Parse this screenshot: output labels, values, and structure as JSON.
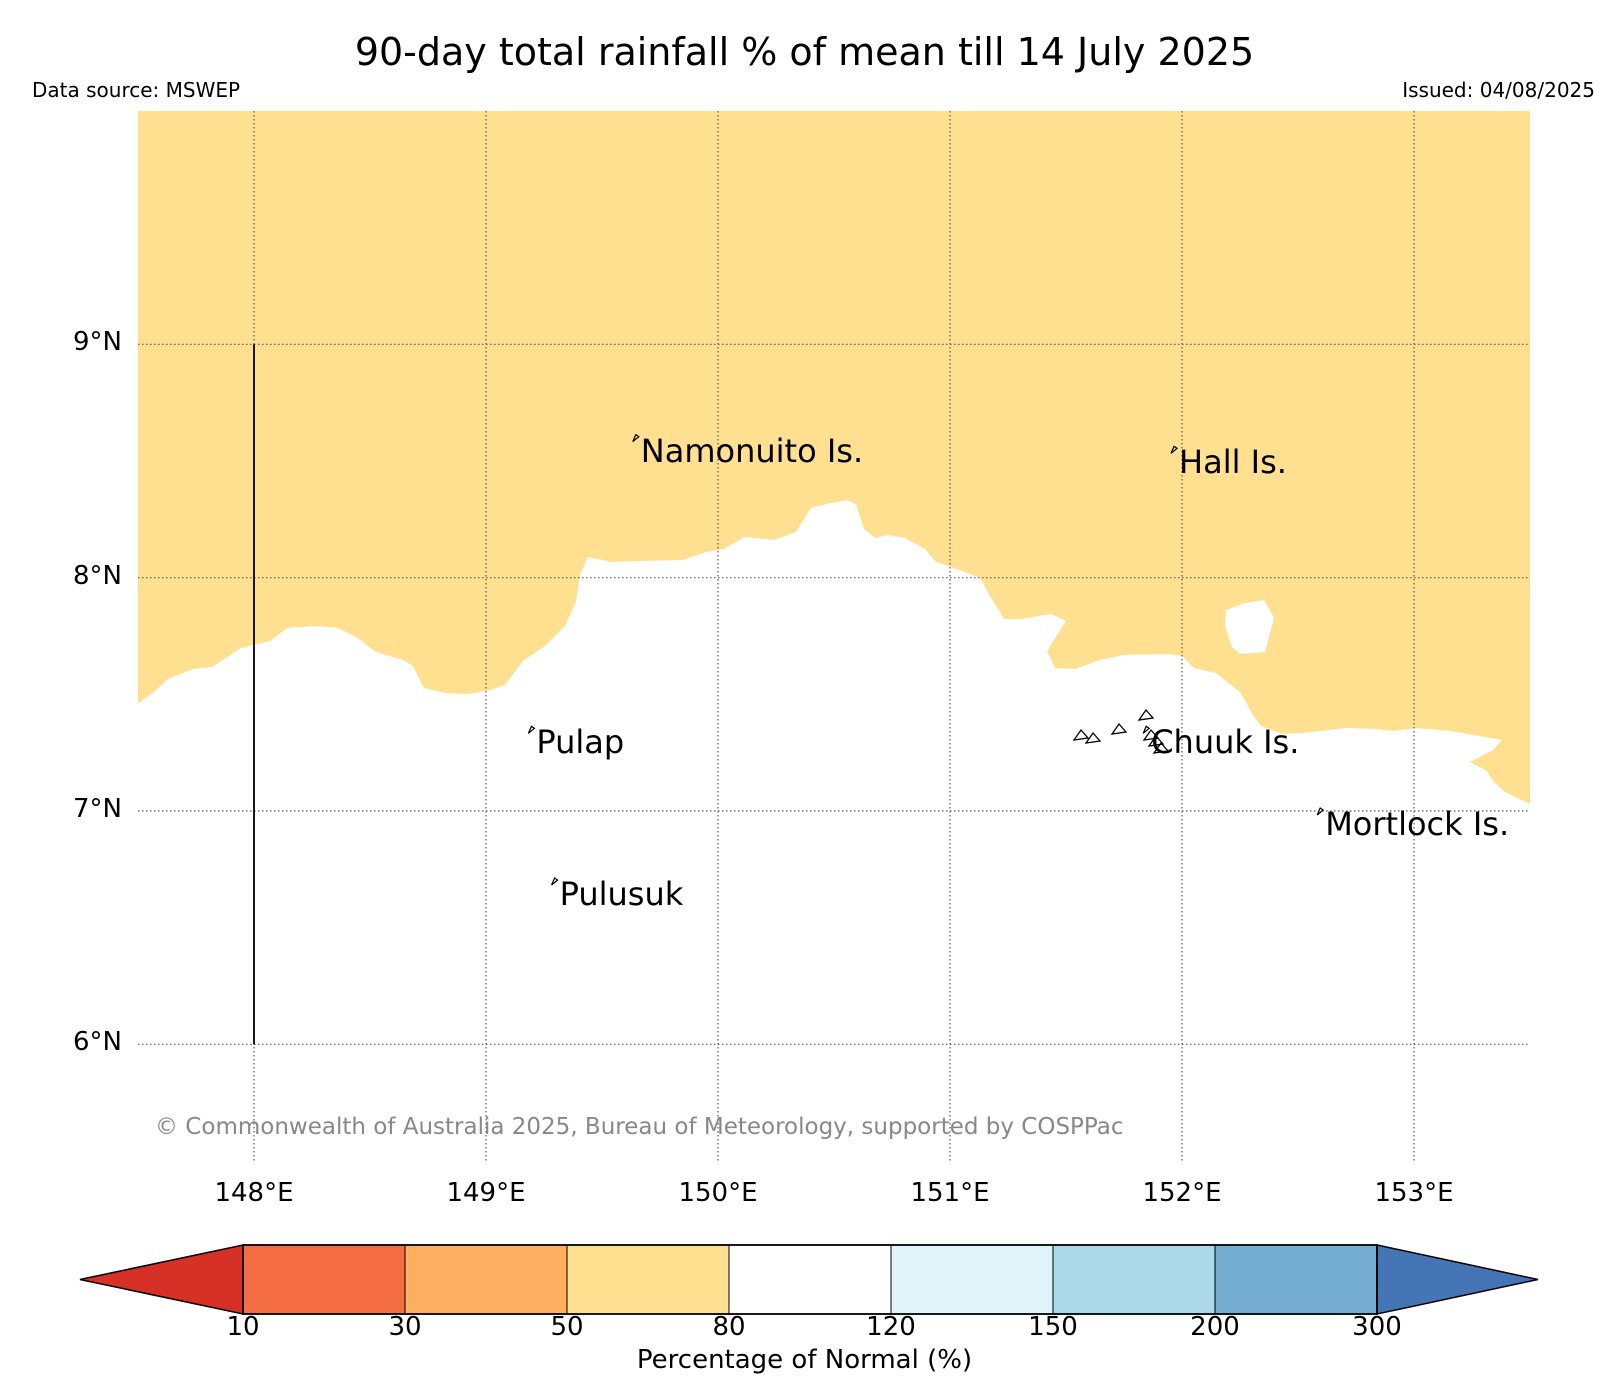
{
  "title": "90-day total rainfall % of mean till 14 July 2025",
  "source_text": "Data source: MSWEP",
  "issued_text": "Issued: 04/08/2025",
  "copyright": "© Commonwealth of Australia 2025, Bureau of Meteorology, supported by COSPPac",
  "map": {
    "extent": {
      "lon_min": 147.5,
      "lon_max": 153.5,
      "lat_min": 5.5,
      "lat_max": 10.0
    },
    "lat_ticks": [
      {
        "value": 9,
        "label": "9°N"
      },
      {
        "value": 8,
        "label": "8°N"
      },
      {
        "value": 7,
        "label": "7°N"
      },
      {
        "value": 6,
        "label": "6°N"
      }
    ],
    "lon_ticks": [
      {
        "value": 148,
        "label": "148°E"
      },
      {
        "value": 149,
        "label": "149°E"
      },
      {
        "value": 150,
        "label": "150°E"
      },
      {
        "value": 151,
        "label": "151°E"
      },
      {
        "value": 152,
        "label": "152°E"
      },
      {
        "value": 153,
        "label": "153°E"
      }
    ],
    "gridlines": "dotted",
    "boundary_line": {
      "lon": 148.0,
      "lat_from": 6.0,
      "lat_to": 9.0
    },
    "islands": [
      {
        "name": "Namonuito Is.",
        "lon": 149.65,
        "lat": 8.6
      },
      {
        "name": "Hall Is.",
        "lon": 151.97,
        "lat": 8.55
      },
      {
        "name": "Pulap",
        "lon": 149.2,
        "lat": 7.35
      },
      {
        "name": "Chuuk Is.",
        "lon": 151.85,
        "lat": 7.35
      },
      {
        "name": "Mortlock Is.",
        "lon": 152.6,
        "lat": 7.0
      },
      {
        "name": "Pulusuk",
        "lon": 149.3,
        "lat": 6.7
      }
    ]
  },
  "legend": {
    "title": "Percentage of Normal (%)",
    "ticks": [
      "10",
      "30",
      "50",
      "80",
      "120",
      "150",
      "200",
      "300"
    ],
    "colors": [
      "#d73027",
      "#f46d43",
      "#fdae61",
      "#fee090",
      "#ffffff",
      "#e0f3f8",
      "#abd9e9",
      "#74add1",
      "#4575b4"
    ]
  },
  "fill_category_north": "50–80",
  "fill_color_north": "#fee090",
  "fill_color_south": "#ffffff"
}
